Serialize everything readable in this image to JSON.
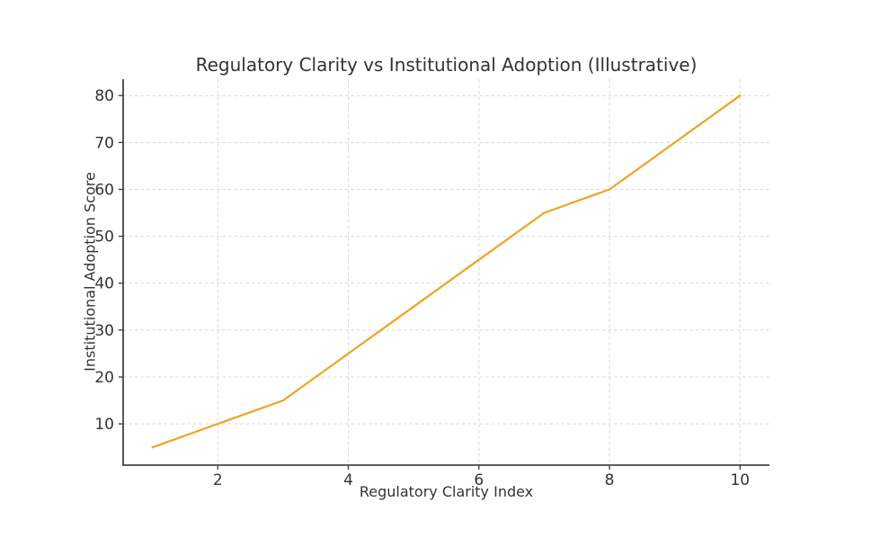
{
  "chart_data": {
    "type": "line",
    "title": "Regulatory Clarity vs Institutional Adoption (Illustrative)",
    "xlabel": "Regulatory Clarity Index",
    "ylabel": "Institutional Adoption Score",
    "x": [
      1,
      2,
      3,
      4,
      5,
      6,
      7,
      8,
      9,
      10
    ],
    "y": [
      5,
      10,
      15,
      25,
      35,
      45,
      55,
      60,
      70,
      80
    ],
    "xticks": [
      2,
      4,
      6,
      8,
      10
    ],
    "yticks": [
      10,
      20,
      30,
      40,
      50,
      60,
      70,
      80
    ],
    "xlim": [
      0.55,
      10.45
    ],
    "ylim": [
      1.2,
      83.5
    ],
    "line_color": "#efa41e",
    "grid": "dashed",
    "grid_color": "#d8d8d8",
    "axis_color": "#444444",
    "text_color": "#333333",
    "background": "#ffffff",
    "legend": "none",
    "markers": "none"
  }
}
